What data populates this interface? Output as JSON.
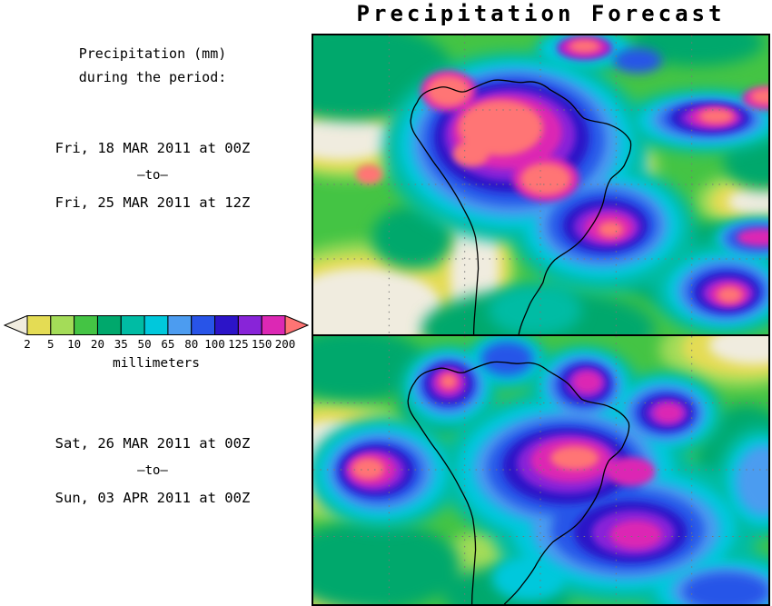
{
  "title": "Precipitation Forecast",
  "legend": {
    "heading1": "Precipitation (mm)",
    "heading2": "during the period:",
    "units": "millimeters",
    "levels": [
      "2",
      "5",
      "10",
      "20",
      "35",
      "50",
      "65",
      "80",
      "100",
      "125",
      "150",
      "200"
    ],
    "colors": {
      "under": "#F0ECDF",
      "segments": [
        "#E4DC54",
        "#A4DC58",
        "#44C444",
        "#00A86C",
        "#00BCA4",
        "#00C8DC",
        "#4C9CF0",
        "#2854E8",
        "#2C14C8",
        "#8824D8",
        "#DC28B4"
      ],
      "over": "#FF7474"
    }
  },
  "periods": {
    "p1": {
      "start": "Fri, 18 MAR 2011 at 00Z",
      "sep": "–to–",
      "end": "Fri, 25 MAR 2011 at 12Z"
    },
    "p2": {
      "start": "Sat, 26 MAR 2011 at 00Z",
      "sep": "–to–",
      "end": "Sun, 03 APR 2011 at 00Z"
    }
  }
}
